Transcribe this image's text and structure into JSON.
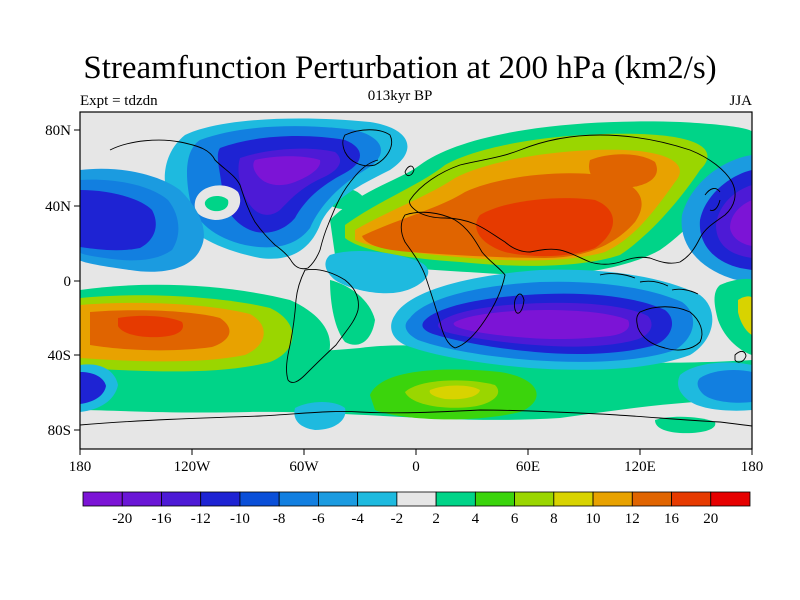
{
  "title": "Streamfunction Perturbation at 200 hPa (km2/s)",
  "left_label": "Expt = tdzdn",
  "center_label": "013kyr BP",
  "right_label": "JJA",
  "map": {
    "projection": "cylindrical-equidistant",
    "lon_range": [
      -180,
      180
    ],
    "lat_range": [
      -90,
      90
    ],
    "x_ticks": [
      "180",
      "120W",
      "60W",
      "0",
      "60E",
      "120E",
      "180"
    ],
    "y_ticks": [
      "80N",
      "40N",
      "0",
      "40S",
      "80S"
    ],
    "fill_value_color": "#e6e6e6"
  },
  "colorbar": {
    "labels": [
      "-20",
      "-16",
      "-12",
      "-10",
      "-8",
      "-6",
      "-4",
      "-2",
      "2",
      "4",
      "6",
      "8",
      "10",
      "12",
      "16",
      "20"
    ],
    "colors": [
      "#7c14d6",
      "#6a16d6",
      "#4d1ad6",
      "#1e23d3",
      "#0a4fd8",
      "#127fe0",
      "#1b9be0",
      "#1ebadf",
      "#e6e6e6",
      "#00d488",
      "#3bd40c",
      "#9ad600",
      "#d8d300",
      "#e8a200",
      "#e06400",
      "#e63a00",
      "#e60000"
    ]
  }
}
